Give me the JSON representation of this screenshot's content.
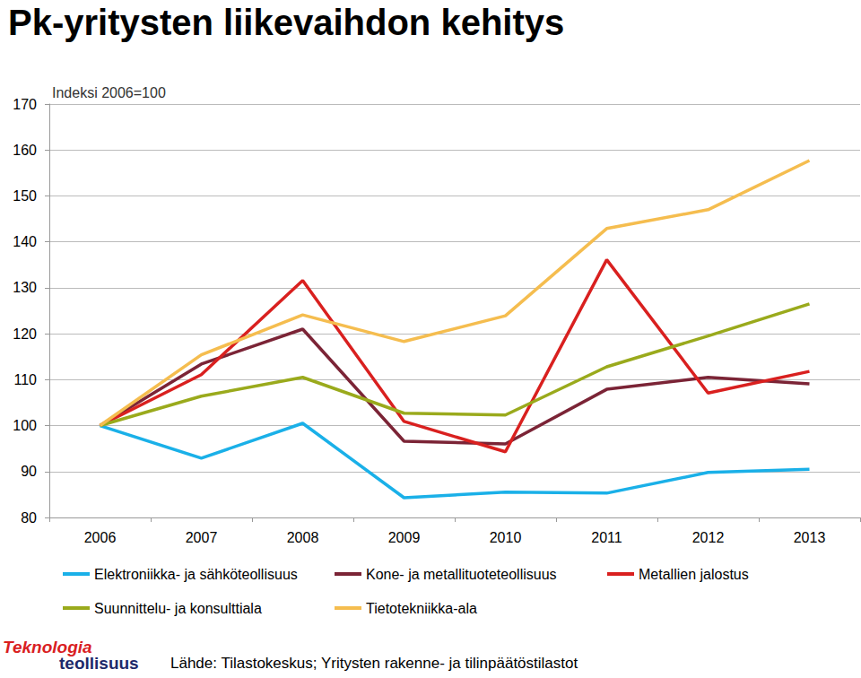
{
  "chart_data": {
    "type": "line",
    "title": "Pk-yritysten liikevaihdon kehitys",
    "subtitle": "Indeksi 2006=100",
    "annotations": [
      "Lähde: Tilastokeskus; Yritysten rakenne- ja tilinpäätöstilastot",
      "Teknologia",
      "teollisuus"
    ],
    "categories": [
      "2006",
      "2007",
      "2008",
      "2009",
      "2010",
      "2011",
      "2012",
      "2013"
    ],
    "series": [
      {
        "name": "Elektroniikka- ja sähköteollisuus",
        "color": "#1ab0e8",
        "values": [
          100,
          92.9,
          100.5,
          84.3,
          85.5,
          85.3,
          89.8,
          90.5
        ]
      },
      {
        "name": "Kone- ja metallituoteteollisuus",
        "color": "#7b2436",
        "values": [
          100,
          113.4,
          121,
          96.6,
          96.0,
          107.9,
          110.5,
          109.1
        ]
      },
      {
        "name": "Metallien jalostus",
        "color": "#d9201f",
        "values": [
          100,
          111.1,
          131.6,
          100.9,
          94.3,
          136.1,
          107.1,
          111.8
        ]
      },
      {
        "name": "Suunnittelu- ja konsulttiala",
        "color": "#9aaa1c",
        "values": [
          100,
          106.4,
          110.5,
          102.7,
          102.3,
          112.8,
          119.5,
          126.5
        ]
      },
      {
        "name": "Tietotekniikka-ala",
        "color": "#f5bd4f",
        "values": [
          100,
          115.4,
          124.1,
          118.3,
          123.9,
          142.9,
          147,
          157.7
        ]
      }
    ],
    "ylim": [
      80,
      170
    ],
    "yticks": [
      80,
      90,
      100,
      110,
      120,
      130,
      140,
      150,
      160,
      170
    ],
    "grid": true,
    "legend": "bottom"
  }
}
